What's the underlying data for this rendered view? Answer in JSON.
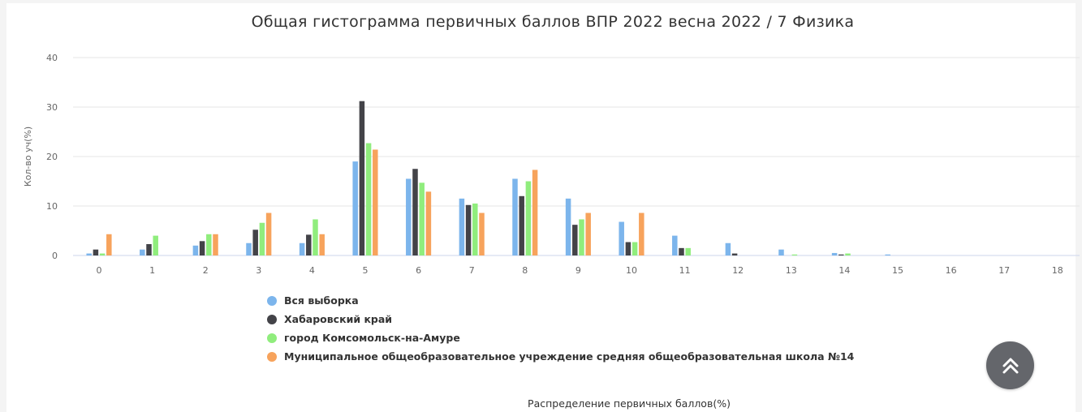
{
  "chart_data": {
    "type": "bar",
    "title": "Общая гистограмма первичных баллов ВПР 2022 весна 2022 / 7 Физика",
    "xlabel": "Распределение первичных баллов(%)",
    "ylabel": "Кол-во уч(%)",
    "ylim": [
      0,
      40
    ],
    "yticks": [
      "0",
      "10",
      "20",
      "30",
      "40"
    ],
    "grid": true,
    "legend_position": "bottom-left",
    "categories": [
      "0",
      "1",
      "2",
      "3",
      "4",
      "5",
      "6",
      "7",
      "8",
      "9",
      "10",
      "11",
      "12",
      "13",
      "14",
      "15",
      "16",
      "17",
      "18"
    ],
    "series": [
      {
        "name": "Вся выборка",
        "color": "#7cb5ec",
        "values": [
          0.4,
          1.2,
          2,
          2.5,
          2.5,
          19,
          15.5,
          11.5,
          15.5,
          11.5,
          6.8,
          4,
          2.5,
          1.2,
          0.5,
          0.2,
          0,
          0,
          0
        ]
      },
      {
        "name": "Хабаровский край",
        "color": "#434348",
        "values": [
          1.2,
          2.3,
          2.9,
          5.2,
          4.2,
          31.2,
          17.5,
          10.2,
          12,
          6.2,
          2.7,
          1.5,
          0.4,
          0,
          0.2,
          0,
          0,
          0,
          0
        ]
      },
      {
        "name": "город Комсомольск-на-Амуре",
        "color": "#90ed7d",
        "values": [
          0.4,
          4,
          4.3,
          6.6,
          7.3,
          22.7,
          14.7,
          10.5,
          15,
          7.3,
          2.7,
          1.5,
          0,
          0.2,
          0.4,
          0,
          0,
          0,
          0
        ]
      },
      {
        "name": "Муниципальное общеобразовательное учреждение средняя общеобразовательная школа №14",
        "color": "#f7a35c",
        "values": [
          4.3,
          0,
          4.3,
          8.6,
          4.3,
          21.4,
          12.9,
          8.6,
          17.3,
          8.6,
          8.6,
          0,
          0,
          0,
          0,
          0,
          0,
          0,
          0
        ]
      }
    ]
  },
  "scroll_top": {
    "icon": "double-chevron-up-icon",
    "color": "#64666b"
  }
}
